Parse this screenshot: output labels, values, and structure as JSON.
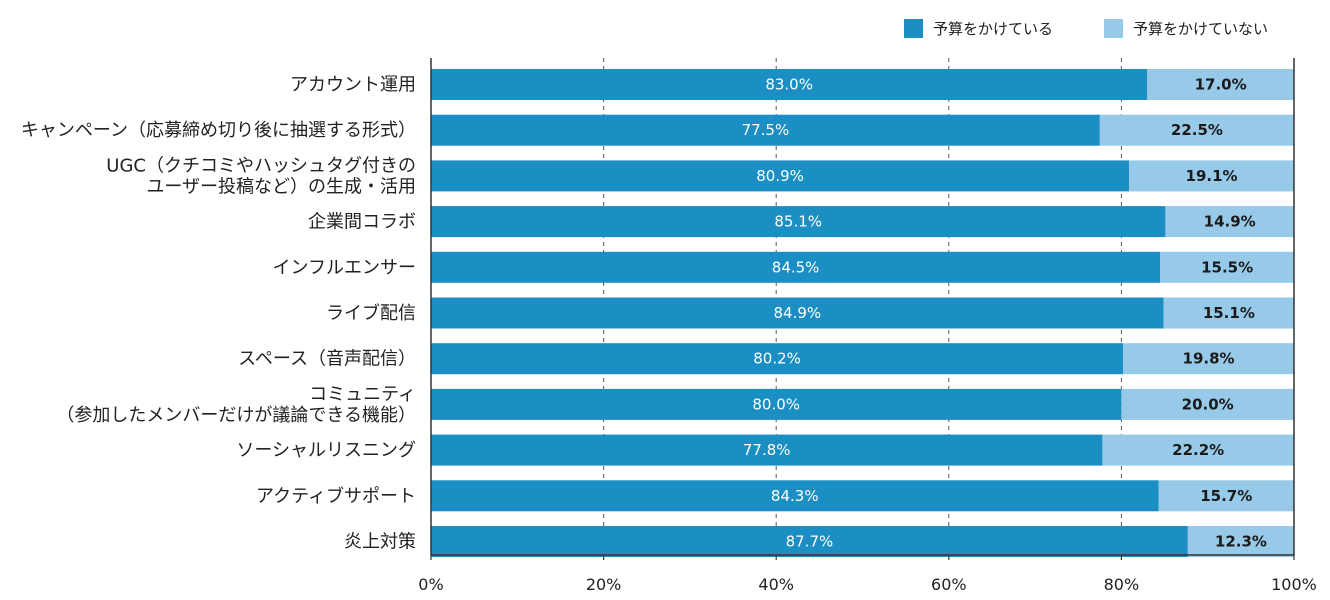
{
  "chart_data": {
    "type": "bar",
    "orientation": "horizontal",
    "stacked": true,
    "categories": [
      [
        "アカウント運用"
      ],
      [
        "キャンペーン（応募締め切り後に抽選する形式）"
      ],
      [
        "UGC（クチコミやハッシュタグ付きの",
        "ユーザー投稿など）の生成・活用"
      ],
      [
        "企業間コラボ"
      ],
      [
        "インフルエンサー"
      ],
      [
        "ライブ配信"
      ],
      [
        "スペース（音声配信）"
      ],
      [
        "コミュニティ",
        "（参加したメンバーだけが議論できる機能）"
      ],
      [
        "ソーシャルリスニング"
      ],
      [
        "アクティブサポート"
      ],
      [
        "炎上対策"
      ]
    ],
    "series": [
      {
        "name": "予算をかけている",
        "color": "#1b8fc4",
        "values": [
          83.0,
          77.5,
          80.9,
          85.1,
          84.5,
          84.9,
          80.2,
          80.0,
          77.8,
          84.3,
          87.7
        ],
        "labels": [
          "83.0%",
          "77.5%",
          "80.9%",
          "85.1%",
          "84.5%",
          "84.9%",
          "80.2%",
          "80.0%",
          "77.8%",
          "84.3%",
          "87.7%"
        ]
      },
      {
        "name": "予算をかけていない",
        "color": "#97c9e8",
        "values": [
          17.0,
          22.5,
          19.1,
          14.9,
          15.5,
          15.1,
          19.8,
          20.0,
          22.2,
          15.7,
          12.3
        ],
        "labels": [
          "17.0%",
          "22.5%",
          "19.1%",
          "14.9%",
          "15.5%",
          "15.1%",
          "19.8%",
          "20.0%",
          "22.2%",
          "15.7%",
          "12.3%"
        ]
      }
    ],
    "xlim": [
      0,
      100
    ],
    "xticks": [
      "0%",
      "20%",
      "40%",
      "60%",
      "80%",
      "100%"
    ],
    "grid": "vertical dashed",
    "legend_position": "top-right"
  }
}
